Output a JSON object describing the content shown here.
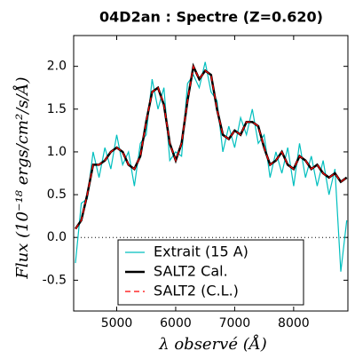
{
  "chart_data": {
    "type": "line",
    "title": "04D2an : Spectre (Z=0.620)",
    "x_label": "λ observé (Å)",
    "y_label": "Flux (10⁻¹⁸ ergs/cm²/s/Å)",
    "x": [
      4300,
      4400,
      4500,
      4600,
      4700,
      4800,
      4900,
      5000,
      5100,
      5200,
      5300,
      5400,
      5500,
      5600,
      5700,
      5800,
      5900,
      6000,
      6100,
      6200,
      6300,
      6400,
      6500,
      6600,
      6700,
      6800,
      6900,
      7000,
      7100,
      7200,
      7300,
      7400,
      7500,
      7600,
      7700,
      7800,
      7900,
      8000,
      8100,
      8200,
      8300,
      8400,
      8500,
      8600,
      8700,
      8800,
      8900
    ],
    "series": [
      {
        "name": "Extrait (15 A)",
        "color": "#00bfbf",
        "width": 1.2,
        "dash": false,
        "values": [
          -0.3,
          0.4,
          0.45,
          1.0,
          0.7,
          1.05,
          0.8,
          1.2,
          0.85,
          1.0,
          0.6,
          1.1,
          1.2,
          1.85,
          1.5,
          1.75,
          0.9,
          1.0,
          0.95,
          1.8,
          1.9,
          1.75,
          2.05,
          1.7,
          1.6,
          1.0,
          1.3,
          1.05,
          1.4,
          1.2,
          1.5,
          1.1,
          1.2,
          0.7,
          1.0,
          0.75,
          1.05,
          0.6,
          1.1,
          0.7,
          0.95,
          0.6,
          0.9,
          0.5,
          0.8,
          -0.4,
          0.2
        ]
      },
      {
        "name": "SALT2 Cal.",
        "color": "#000000",
        "width": 2.5,
        "dash": false,
        "values": [
          0.1,
          0.2,
          0.5,
          0.85,
          0.85,
          0.9,
          1.0,
          1.05,
          1.0,
          0.85,
          0.8,
          0.95,
          1.35,
          1.7,
          1.75,
          1.55,
          1.1,
          0.9,
          1.1,
          1.6,
          2.0,
          1.85,
          1.95,
          1.9,
          1.5,
          1.2,
          1.15,
          1.25,
          1.2,
          1.35,
          1.35,
          1.3,
          1.05,
          0.85,
          0.9,
          1.0,
          0.85,
          0.8,
          0.95,
          0.9,
          0.8,
          0.85,
          0.75,
          0.7,
          0.75,
          0.65,
          0.7
        ]
      },
      {
        "name": "SALT2 (C.L.)",
        "color": "#ff0000",
        "width": 1.2,
        "dash": true,
        "values": [
          0.1,
          0.2,
          0.5,
          0.85,
          0.85,
          0.9,
          1.0,
          1.05,
          1.0,
          0.85,
          0.8,
          0.95,
          1.35,
          1.7,
          1.75,
          1.55,
          1.1,
          0.9,
          1.1,
          1.6,
          2.0,
          1.85,
          1.95,
          1.9,
          1.5,
          1.2,
          1.15,
          1.25,
          1.2,
          1.35,
          1.35,
          1.3,
          1.05,
          0.85,
          0.9,
          1.0,
          0.85,
          0.8,
          0.95,
          0.9,
          0.8,
          0.85,
          0.75,
          0.7,
          0.75,
          0.65,
          0.7
        ]
      }
    ],
    "reference_line": 0,
    "xlim": [
      4270,
      8920
    ],
    "ylim": [
      -0.86,
      2.36
    ],
    "xticks": [
      5000,
      6000,
      7000,
      8000
    ],
    "yticks": [
      -0.5,
      {
        "value": 0,
        "label": "0.0"
      },
      0.5,
      {
        "value": 1,
        "label": "1.0"
      },
      1.5,
      {
        "value": 2,
        "label": "2.0"
      }
    ],
    "legend": "lower center"
  }
}
